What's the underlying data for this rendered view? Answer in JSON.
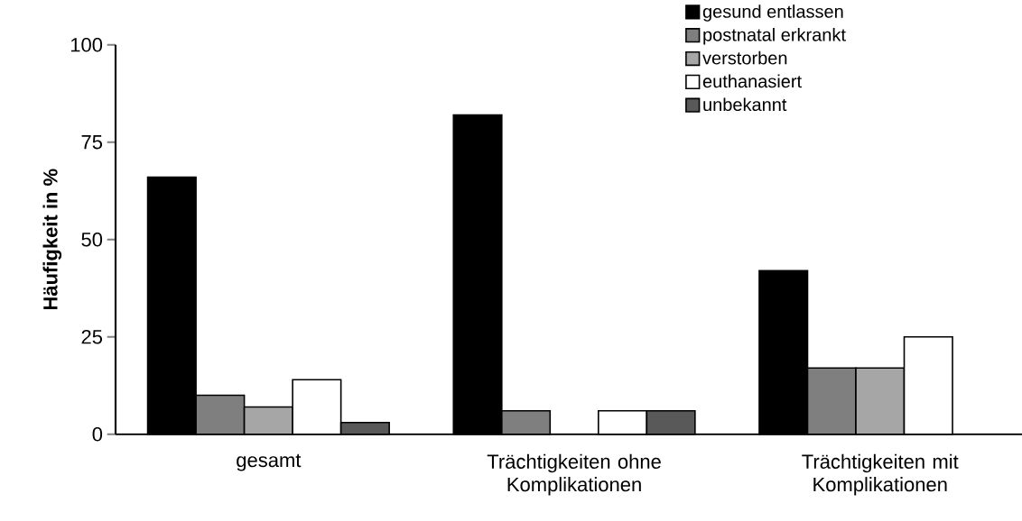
{
  "chart_data": {
    "type": "bar",
    "ylabel": "Häufigkeit in %",
    "categories": [
      "gesamt",
      "Trächtigkeiten ohne Komplikationen",
      "Trächtigkeiten mit Komplikationen"
    ],
    "series": [
      {
        "name": "gesund entlassen",
        "color": "#000000",
        "values": [
          66,
          82,
          42
        ]
      },
      {
        "name": "postnatal erkrankt",
        "color": "#7f7f7f",
        "values": [
          10,
          6,
          17
        ]
      },
      {
        "name": "verstorben",
        "color": "#a6a6a6",
        "values": [
          7,
          null,
          17
        ]
      },
      {
        "name": "euthanasiert",
        "color": "#ffffff",
        "values": [
          14,
          6,
          25
        ]
      },
      {
        "name": "unbekannt",
        "color": "#595959",
        "values": [
          3,
          6,
          null
        ]
      }
    ],
    "ylim": [
      0,
      100
    ],
    "yticks": [
      0,
      25,
      50,
      75,
      100
    ],
    "grid": false,
    "legend": "top right"
  }
}
